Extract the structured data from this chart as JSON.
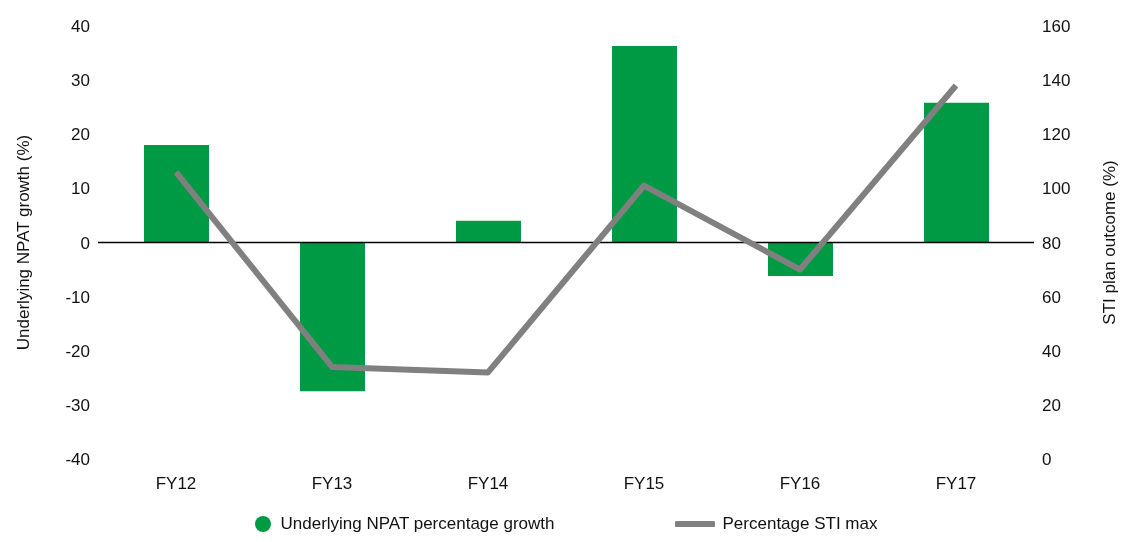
{
  "chart_data": {
    "type": "bar",
    "categories": [
      "FY12",
      "FY13",
      "FY14",
      "FY15",
      "FY16",
      "FY17"
    ],
    "series": [
      {
        "name": "Underlying NPAT percentage growth",
        "color": "#009a44",
        "values": [
          18,
          -27.5,
          4,
          36.3,
          -6.2,
          25.8
        ]
      },
      {
        "name": "Percentage STI max",
        "type": "line",
        "axis": "y2",
        "color": "#808080",
        "values": [
          106,
          34,
          32,
          101,
          70,
          138
        ],
        "marker": "none"
      }
    ],
    "ylabel": "Underlying NPAT growth (%)",
    "y2label": "STI plan outcome (%)",
    "ylim": [
      -40,
      40
    ],
    "yticks": [
      -40,
      -30,
      -20,
      -10,
      0,
      10,
      20,
      30,
      40
    ],
    "y2lim": [
      0,
      160
    ],
    "y2ticks": [
      0,
      20,
      40,
      60,
      80,
      100,
      120,
      140,
      160
    ],
    "ref_lines": [
      {
        "axis": "y",
        "value": 0,
        "color": "#000000"
      }
    ],
    "legend": "bottom"
  }
}
